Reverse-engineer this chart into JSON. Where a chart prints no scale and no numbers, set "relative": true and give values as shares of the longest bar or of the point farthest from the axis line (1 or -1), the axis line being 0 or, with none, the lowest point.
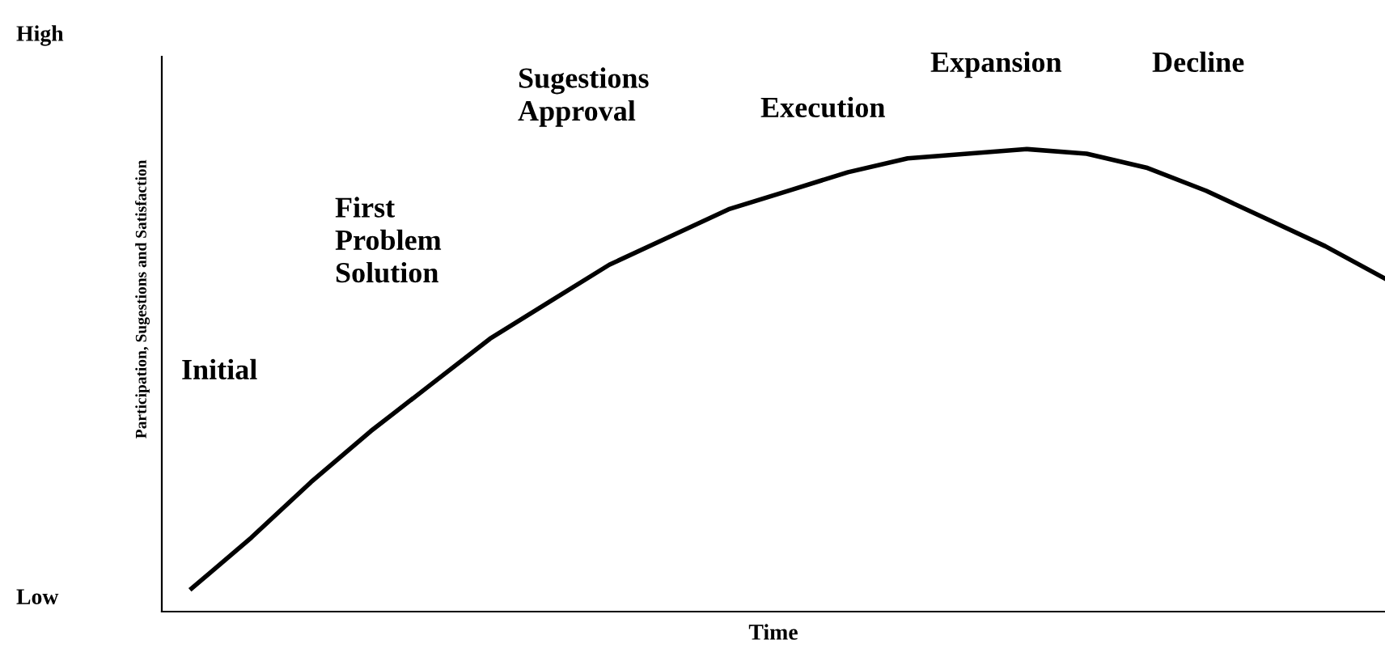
{
  "chart_data": {
    "type": "line",
    "relative": true,
    "xlabel": "Time",
    "ylabel": "Participation, Sugestions and Satisfaction",
    "categories": [
      null,
      null,
      null,
      null,
      null,
      null,
      null,
      null,
      null,
      null,
      null,
      null,
      null,
      null,
      null,
      null,
      null,
      null,
      null,
      null,
      null
    ],
    "series": [
      {
        "color": "#000000",
        "values": [
          0.05,
          0.16,
          0.28,
          0.39,
          0.49,
          0.59,
          0.67,
          0.75,
          0.81,
          0.87,
          0.91,
          0.95,
          0.98,
          0.99,
          1.0,
          0.99,
          0.96,
          0.91,
          0.85,
          0.79,
          0.72
        ]
      }
    ],
    "annotations": [
      "High",
      "Low",
      "Initial",
      "First\nProblem\nSolution",
      "Sugestions\nApproval",
      "Execution",
      "Expansion",
      "Decline"
    ],
    "marker": "none",
    "line_style": "solid",
    "grid": false,
    "legend": false
  }
}
